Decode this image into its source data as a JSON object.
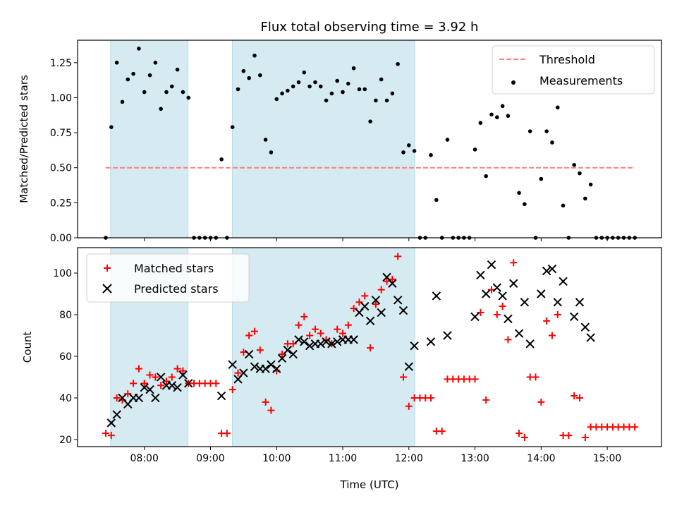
{
  "chart_data": [
    {
      "type": "scatter",
      "title": "Flux total observing time = 3.92 h",
      "xlabel": "",
      "ylabel": "Matched/Predicted stars",
      "xlim": [
        6.99,
        15.82
      ],
      "ylim": [
        0,
        1.41
      ],
      "yticks": [
        "0.00",
        "0.25",
        "0.50",
        "0.75",
        "1.00",
        "1.25"
      ],
      "ytick_values": [
        0,
        0.25,
        0.5,
        0.75,
        1.0,
        1.25
      ],
      "shaded_spans_hours": [
        [
          7.49,
          8.66
        ],
        [
          9.33,
          12.09
        ]
      ],
      "threshold": {
        "name": "Threshold",
        "value": 0.5,
        "x_range_hours": [
          7.417,
          15.417
        ],
        "color": "#ff7f7f"
      },
      "legend": {
        "placement": "top-right",
        "entries": [
          "Threshold",
          "Measurements"
        ]
      },
      "series": [
        {
          "name": "Measurements",
          "color": "#000000",
          "values": [
            0,
            0.79,
            1.25,
            0.97,
            1.13,
            1.17,
            1.35,
            1.04,
            1.16,
            1.25,
            0.92,
            1.04,
            1.08,
            1.2,
            1.04,
            1.0,
            0,
            0,
            0,
            0,
            0,
            0.56,
            0,
            0.79,
            1.06,
            1.19,
            1.14,
            1.3,
            1.16,
            0.7,
            0.61,
            0.99,
            1.03,
            1.05,
            1.08,
            1.11,
            1.18,
            1.08,
            1.11,
            1.08,
            0.98,
            1.03,
            1.12,
            1.04,
            1.1,
            1.21,
            1.06,
            1.06,
            0.83,
            0.98,
            1.13,
            0.98,
            1.03,
            1.24,
            0.61,
            0.66,
            0.62,
            0,
            0,
            0.59,
            0.27,
            0,
            0.7,
            0,
            0,
            0,
            0,
            0.63,
            0.82,
            0.44,
            0.88,
            0.86,
            0.94,
            0.87,
            1.11,
            0.32,
            0.24,
            0.76,
            0,
            0.42,
            0.76,
            0.68,
            0.93,
            0.23,
            0,
            0.52,
            0.46,
            0.28,
            0.38,
            0,
            0,
            0,
            0,
            0,
            0,
            0,
            0
          ]
        }
      ]
    },
    {
      "type": "scatter",
      "title": "",
      "xlabel": "Time (UTC)",
      "ylabel": "Count",
      "xlim": [
        6.99,
        15.82
      ],
      "ylim": [
        16.6,
        112.2
      ],
      "yticks": [
        "20",
        "40",
        "60",
        "80",
        "100"
      ],
      "ytick_values": [
        20,
        40,
        60,
        80,
        100
      ],
      "xticks": [
        "08:00",
        "09:00",
        "10:00",
        "11:00",
        "12:00",
        "13:00",
        "14:00",
        "15:00"
      ],
      "xtick_values": [
        8,
        9,
        10,
        11,
        12,
        13,
        14,
        15
      ],
      "shaded_spans_hours": [
        [
          7.49,
          8.66
        ],
        [
          9.33,
          12.09
        ]
      ],
      "legend": {
        "placement": "top-left",
        "entries": [
          "Matched stars",
          "Predicted stars"
        ]
      },
      "series": [
        {
          "name": "Matched stars",
          "marker": "+",
          "color": "#ff0000",
          "values": [
            23,
            22,
            40,
            39,
            42,
            47,
            54,
            47,
            51,
            50,
            46,
            48,
            50,
            54,
            53,
            47,
            47,
            47,
            47,
            47,
            47,
            23,
            23,
            44,
            52,
            62,
            70,
            72,
            63,
            38,
            34,
            53,
            61,
            66,
            66,
            75,
            79,
            70,
            73,
            71,
            68,
            66,
            73,
            71,
            75,
            83,
            86,
            89,
            64,
            85,
            92,
            96,
            97,
            108,
            50,
            36,
            40,
            40,
            40,
            40,
            24,
            24,
            49,
            49,
            49,
            49,
            49,
            49,
            81,
            39,
            92,
            80,
            84,
            68,
            105,
            23,
            21,
            50,
            50,
            38,
            77,
            70,
            80,
            22,
            22,
            41,
            40,
            21,
            26,
            26,
            26,
            26,
            26,
            26,
            26,
            26,
            26
          ]
        },
        {
          "name": "Predicted stars",
          "marker": "x",
          "color": "#000000",
          "values": [
            null,
            28,
            32,
            40,
            37,
            40,
            40,
            45,
            44,
            40,
            50,
            46,
            46,
            45,
            51,
            47,
            null,
            null,
            null,
            null,
            null,
            41,
            null,
            56,
            49,
            52,
            61,
            55,
            54,
            54,
            56,
            54,
            59,
            63,
            61,
            68,
            67,
            65,
            66,
            66,
            67,
            66,
            67,
            68,
            68,
            68,
            81,
            84,
            77,
            87,
            81,
            98,
            95,
            87,
            82,
            55,
            65,
            null,
            null,
            67,
            89,
            null,
            70,
            null,
            null,
            null,
            null,
            79,
            99,
            90,
            104,
            93,
            89,
            78,
            95,
            71,
            86,
            66,
            null,
            90,
            101,
            102,
            86,
            96,
            null,
            79,
            86,
            74,
            69,
            null,
            null,
            null,
            null,
            null,
            null,
            null,
            null
          ]
        }
      ]
    }
  ],
  "x_start_hours": 7.4167,
  "x_step_hours": 0.08333,
  "colors": {
    "span": "#d5eaf1",
    "span_edge": "#b5dbe7",
    "matched": "#ff0000",
    "predicted": "#000000",
    "threshold": "#ff7f7f"
  }
}
